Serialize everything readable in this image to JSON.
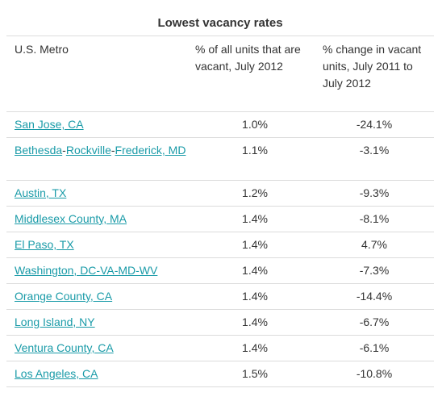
{
  "table": {
    "title": "Lowest vacancy rates",
    "headers": [
      "U.S. Metro",
      "% of all units that are vacant, July 2012",
      "% change in vacant units, July 2011 to July 2012"
    ],
    "rows": [
      {
        "metro": "San Jose, CA",
        "vacant": "1.0%",
        "change": "-24.1%"
      },
      {
        "metro_parts": [
          "Bethesda",
          "Rockville",
          "Frederick, MD"
        ],
        "vacant": "1.1%",
        "change": "-3.1%"
      },
      {
        "metro": "Austin, TX",
        "vacant": "1.2%",
        "change": "-9.3%"
      },
      {
        "metro": "Middlesex County, MA",
        "vacant": "1.4%",
        "change": "-8.1%"
      },
      {
        "metro": "El Paso, TX",
        "vacant": "1.4%",
        "change": "4.7%"
      },
      {
        "metro": "Washington, DC-VA-MD-WV",
        "vacant": "1.4%",
        "change": "-7.3%"
      },
      {
        "metro": "Orange County, CA",
        "vacant": "1.4%",
        "change": "-14.4%"
      },
      {
        "metro": "Long Island, NY",
        "vacant": "1.4%",
        "change": "-6.7%"
      },
      {
        "metro": "Ventura County, CA",
        "vacant": "1.4%",
        "change": "-6.1%"
      },
      {
        "metro": "Los Angeles, CA",
        "vacant": "1.5%",
        "change": "-10.8%"
      }
    ]
  },
  "colors": {
    "link": "#1a9ba8",
    "text": "#333333",
    "rule": "#dcdcdc"
  }
}
